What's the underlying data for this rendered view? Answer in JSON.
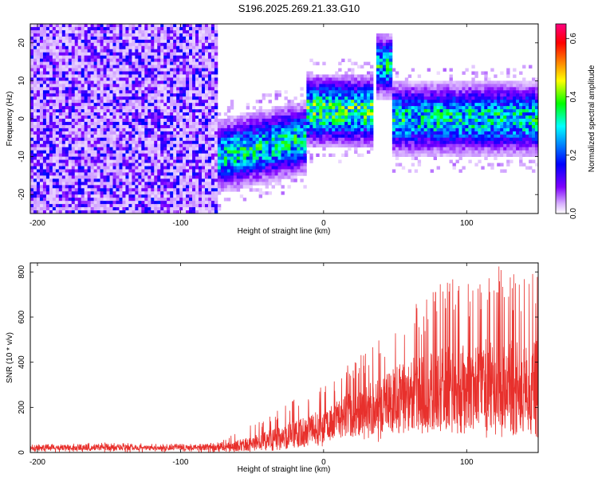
{
  "figure_title": "S196.2025.269.21.33.G10",
  "chart_data": [
    {
      "type": "heatmap",
      "title": "",
      "xlabel": "Height of straight line (km)",
      "ylabel": "Frequency (Hz)",
      "xlim": [
        -205,
        150
      ],
      "ylim": [
        -25,
        25
      ],
      "xticks": [
        -200,
        -100,
        0,
        100
      ],
      "yticks": [
        -20,
        -10,
        0,
        10,
        20
      ],
      "colorbar": {
        "label": "Normalized spectral amplitude",
        "range": [
          0.0,
          0.65
        ],
        "ticks": [
          "0.0",
          "0.2",
          "0.4",
          "0.6"
        ],
        "colormap": [
          "#ffffff",
          "#7f00ff",
          "#0000ff",
          "#00ffff",
          "#00ff00",
          "#ffff00",
          "#ff8000",
          "#ff0000",
          "#ff0080"
        ]
      },
      "features": [
        {
          "x_range": [
            -205,
            -75
          ],
          "freq_center": 0,
          "freq_halfwidth": 25,
          "amplitude": 0.15,
          "kind": "diffuse noise"
        },
        {
          "x_range": [
            -75,
            -12
          ],
          "freq_start": -10,
          "freq_end": -5,
          "amplitude": 0.3,
          "kind": "rising band"
        },
        {
          "x_range": [
            -12,
            35
          ],
          "freq_center": 2,
          "amplitude": 0.35,
          "kind": "band",
          "peak": {
            "x": -13,
            "freq": 2.5,
            "amplitude": 0.6
          }
        },
        {
          "x_range": [
            37,
            47
          ],
          "freq_center": 14,
          "amplitude": 0.3,
          "kind": "isolated blob"
        },
        {
          "x_range": [
            48,
            150
          ],
          "freq_center": 0,
          "amplitude": 0.3,
          "kind": "band"
        }
      ]
    },
    {
      "type": "line",
      "title": "",
      "xlabel": "Height of straight line (km)",
      "ylabel": "SNR (10 * v/v)",
      "xlim": [
        -205,
        150
      ],
      "ylim": [
        0,
        840
      ],
      "xticks": [
        -200,
        -100,
        0,
        100
      ],
      "yticks": [
        0,
        200,
        400,
        600,
        800
      ],
      "line_color": "#e8302c",
      "envelope": {
        "x": [
          -205,
          -180,
          -150,
          -120,
          -90,
          -75,
          -60,
          -45,
          -30,
          -15,
          0,
          15,
          30,
          45,
          60,
          75,
          90,
          105,
          120,
          135,
          150
        ],
        "upper": [
          35,
          40,
          45,
          40,
          38,
          45,
          90,
          140,
          210,
          250,
          300,
          380,
          450,
          560,
          650,
          720,
          780,
          800,
          830,
          810,
          830
        ],
        "lower": [
          0,
          0,
          0,
          0,
          0,
          0,
          0,
          5,
          5,
          10,
          20,
          30,
          50,
          40,
          60,
          60,
          60,
          70,
          60,
          70,
          40
        ],
        "mean": [
          20,
          20,
          22,
          20,
          20,
          22,
          30,
          45,
          65,
          90,
          120,
          160,
          190,
          220,
          250,
          270,
          280,
          290,
          300,
          290,
          280
        ]
      }
    }
  ]
}
